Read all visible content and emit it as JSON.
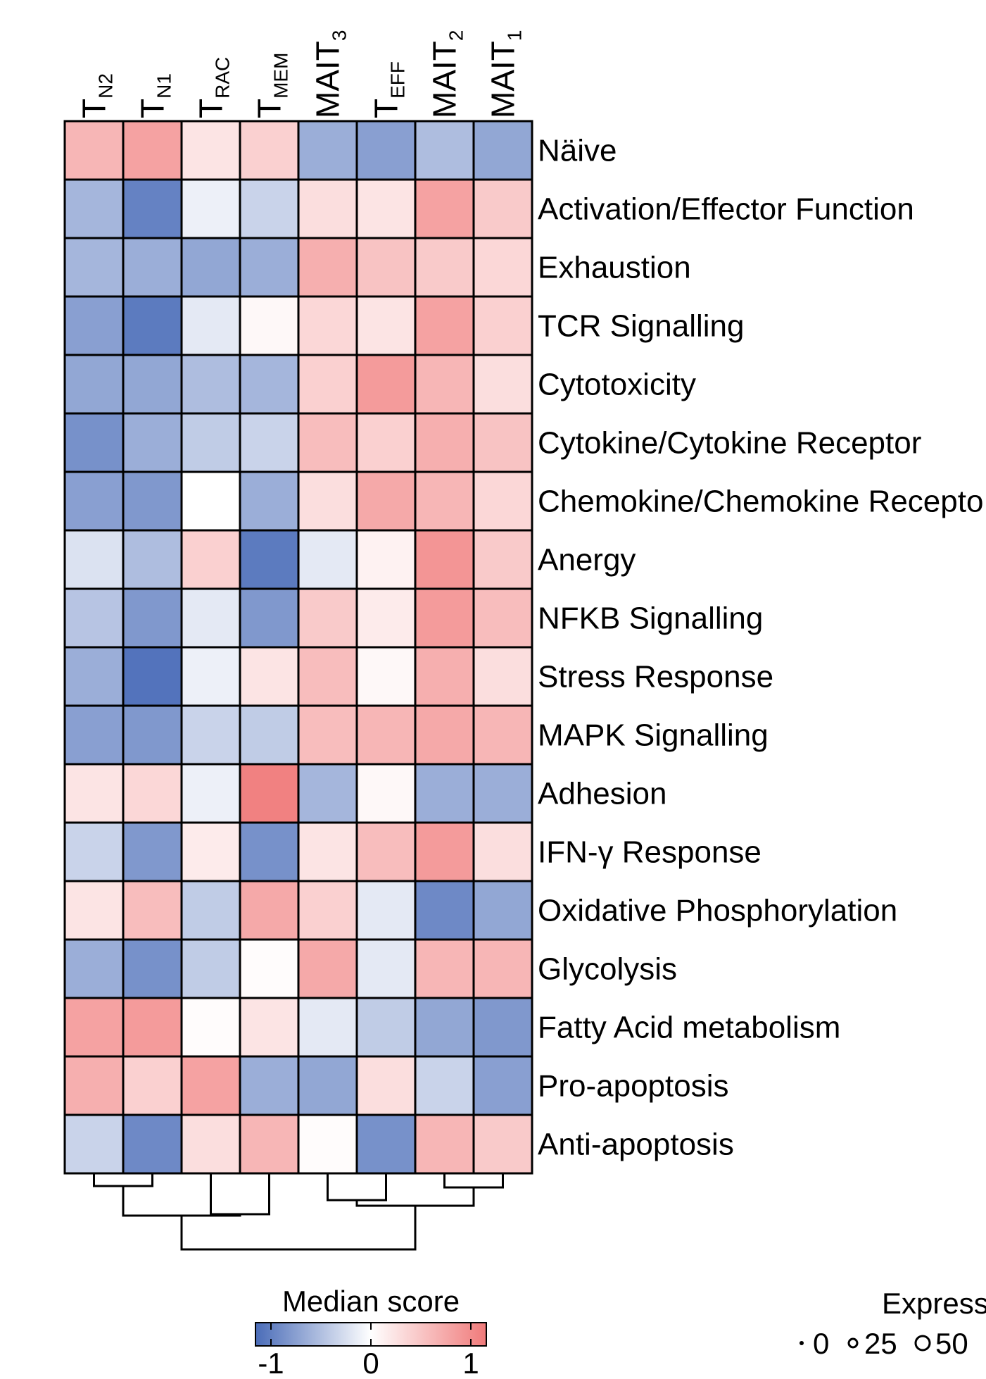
{
  "chart_data": {
    "type": "heatmap",
    "columns": [
      {
        "main": "T",
        "sub": "N2"
      },
      {
        "main": "T",
        "sub": "N1"
      },
      {
        "main": "T",
        "sub": "RAC"
      },
      {
        "main": "T",
        "sub": "MEM"
      },
      {
        "main": "MAIT",
        "sub": "3"
      },
      {
        "main": "T",
        "sub": "EFF"
      },
      {
        "main": "MAIT",
        "sub": "2"
      },
      {
        "main": "MAIT",
        "sub": "1"
      }
    ],
    "rows": [
      "Näive",
      "Activation/Effector Function",
      "Exhaustion",
      "TCR Signalling",
      "Cytotoxicity",
      "Cytokine/Cytokine Receptor",
      "Chemokine/Chemokine Recepto",
      "Anergy",
      "NFKB Signalling",
      "Stress Response",
      "MAPK Signalling",
      "Adhesion",
      "IFN-γ Response",
      "Oxidative Phosphorylation",
      "Glycolysis",
      "Fatty Acid metabolism",
      "Pro-apoptosis",
      "Anti-apoptosis"
    ],
    "values": [
      [
        0.55,
        0.7,
        0.2,
        0.35,
        -0.55,
        -0.65,
        -0.45,
        -0.6
      ],
      [
        -0.5,
        -0.85,
        -0.1,
        -0.3,
        0.25,
        0.2,
        0.7,
        0.4
      ],
      [
        -0.5,
        -0.55,
        -0.6,
        -0.55,
        0.6,
        0.45,
        0.4,
        0.3
      ],
      [
        -0.65,
        -0.9,
        -0.15,
        0.05,
        0.3,
        0.2,
        0.7,
        0.35
      ],
      [
        -0.6,
        -0.6,
        -0.45,
        -0.5,
        0.35,
        0.75,
        0.55,
        0.25
      ],
      [
        -0.75,
        -0.55,
        -0.35,
        -0.3,
        0.5,
        0.35,
        0.6,
        0.45
      ],
      [
        -0.65,
        -0.7,
        0.0,
        -0.55,
        0.25,
        0.65,
        0.55,
        0.3
      ],
      [
        -0.2,
        -0.45,
        0.35,
        -0.9,
        -0.15,
        0.1,
        0.8,
        0.4
      ],
      [
        -0.4,
        -0.7,
        -0.15,
        -0.7,
        0.4,
        0.15,
        0.75,
        0.5
      ],
      [
        -0.55,
        -0.95,
        -0.1,
        0.2,
        0.5,
        0.05,
        0.6,
        0.25
      ],
      [
        -0.65,
        -0.7,
        -0.3,
        -0.35,
        0.5,
        0.55,
        0.65,
        0.55
      ],
      [
        0.2,
        0.3,
        -0.1,
        0.95,
        -0.5,
        0.05,
        -0.55,
        -0.55
      ],
      [
        -0.3,
        -0.7,
        0.15,
        -0.75,
        0.2,
        0.5,
        0.75,
        0.25
      ],
      [
        0.2,
        0.5,
        -0.35,
        0.65,
        0.35,
        -0.15,
        -0.8,
        -0.6
      ],
      [
        -0.55,
        -0.75,
        -0.35,
        0.02,
        0.65,
        -0.15,
        0.55,
        0.55
      ],
      [
        0.7,
        0.75,
        0.02,
        0.2,
        -0.15,
        -0.35,
        -0.6,
        -0.7
      ],
      [
        0.6,
        0.35,
        0.7,
        -0.55,
        -0.6,
        0.25,
        -0.3,
        -0.65
      ],
      [
        -0.3,
        -0.8,
        0.25,
        0.55,
        0.02,
        -0.75,
        0.55,
        0.4
      ]
    ],
    "dendrogram": "column clustering: (((TN2, TN1), (TRAC, TMEM)), ((MAIT3, TEFF), (MAIT2, MAIT1)))",
    "colorbar": {
      "title": "Median score",
      "min": -1,
      "max": 1,
      "ticks": [
        "-1",
        "0",
        "1"
      ],
      "low_color": "#4a6cb8",
      "mid_color": "#ffffff",
      "high_color": "#f07a7a"
    },
    "size_legend": {
      "title": "Expressi",
      "items": [
        "0",
        "25",
        "50"
      ]
    }
  }
}
